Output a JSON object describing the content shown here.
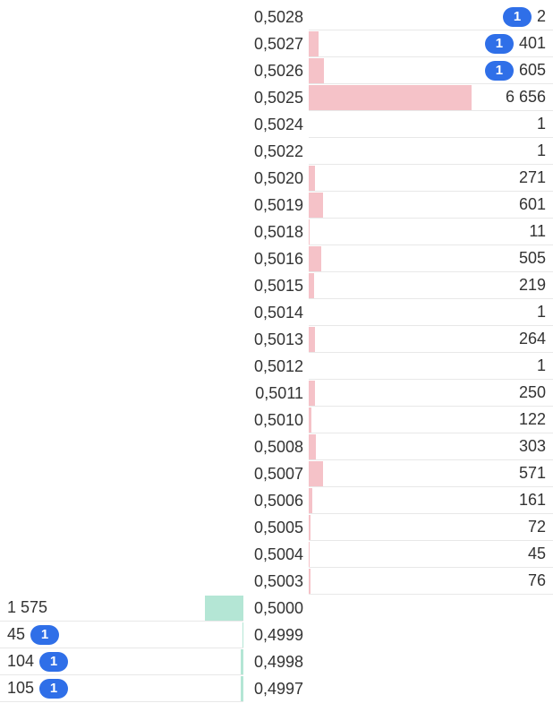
{
  "asks": [
    {
      "price": "0,5028",
      "quantity": 2,
      "orders": 1
    },
    {
      "price": "0,5027",
      "quantity": 401,
      "orders": 1
    },
    {
      "price": "0,5026",
      "quantity": 605,
      "orders": 1
    },
    {
      "price": "0,5025",
      "quantity": 6656,
      "quantity_label": "6 656"
    },
    {
      "price": "0,5024",
      "quantity": 1
    },
    {
      "price": "0,5022",
      "quantity": 1
    },
    {
      "price": "0,5020",
      "quantity": 271
    },
    {
      "price": "0,5019",
      "quantity": 601
    },
    {
      "price": "0,5018",
      "quantity": 11
    },
    {
      "price": "0,5016",
      "quantity": 505
    },
    {
      "price": "0,5015",
      "quantity": 219
    },
    {
      "price": "0,5014",
      "quantity": 1
    },
    {
      "price": "0,5013",
      "quantity": 264
    },
    {
      "price": "0,5012",
      "quantity": 1
    },
    {
      "price": "0,5011",
      "quantity": 250
    },
    {
      "price": "0,5010",
      "quantity": 122
    },
    {
      "price": "0,5008",
      "quantity": 303
    },
    {
      "price": "0,5007",
      "quantity": 571
    },
    {
      "price": "0,5006",
      "quantity": 161
    },
    {
      "price": "0,5005",
      "quantity": 72
    },
    {
      "price": "0,5004",
      "quantity": 45
    },
    {
      "price": "0,5003",
      "quantity": 76
    }
  ],
  "bids": [
    {
      "price": "0,5000",
      "quantity": 1575,
      "quantity_label": "1 575"
    },
    {
      "price": "0,4999",
      "quantity": 45,
      "orders": 1
    },
    {
      "price": "0,4998",
      "quantity": 104,
      "orders": 1
    },
    {
      "price": "0,4997",
      "quantity": 105,
      "orders": 1
    }
  ]
}
